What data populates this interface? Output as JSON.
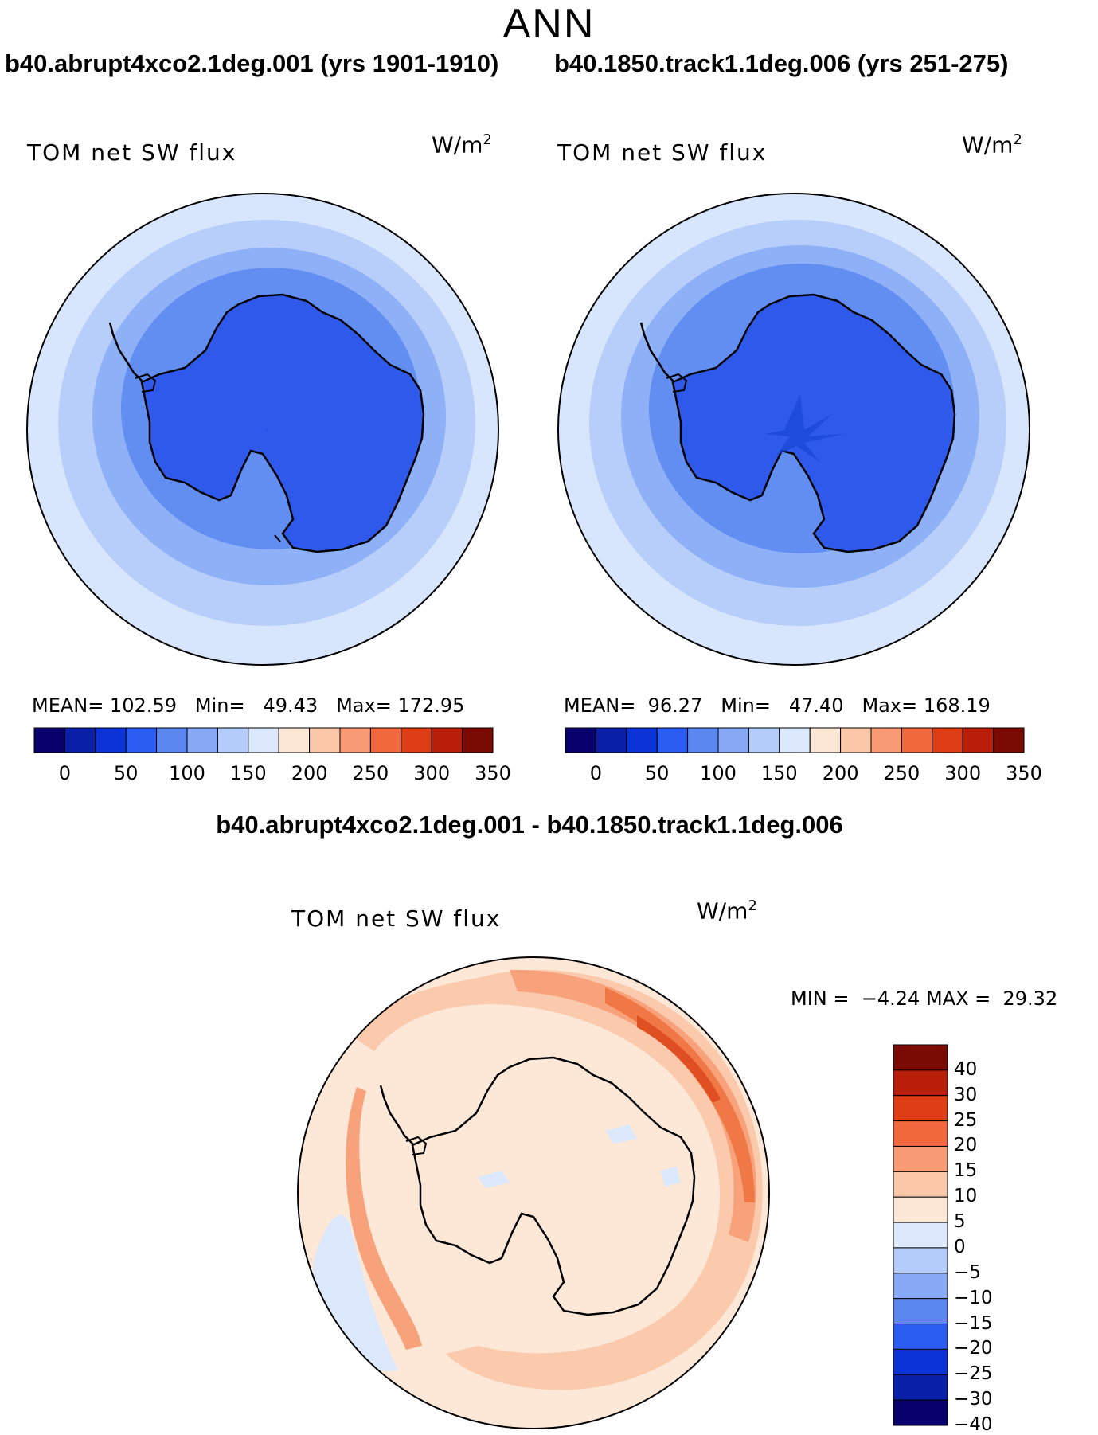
{
  "page": {
    "title": "ANN"
  },
  "colors": {
    "levels_abs": [
      "#08006b",
      "#0a1fa8",
      "#0b33d6",
      "#2b5df2",
      "#5b88f0",
      "#87a8f5",
      "#b4ccfa",
      "#dce8fc",
      "#fde8d8",
      "#fbc7a9",
      "#f89a73",
      "#f0683c",
      "#de3d15",
      "#b91e0a",
      "#7a0b04"
    ],
    "levels_diff": [
      "#08006b",
      "#0a1fa8",
      "#0b33d6",
      "#2b5df2",
      "#5b88f0",
      "#87a8f5",
      "#b4ccfa",
      "#dce8fc",
      "#fde8d8",
      "#fbc7a9",
      "#f89a73",
      "#f0683c",
      "#de3d15",
      "#b91e0a",
      "#7a0b04"
    ],
    "land_abs": "#2e59ea",
    "land_diff": "#fde8d8",
    "ring_abs": [
      "#d8e6fd",
      "#b7cdfa",
      "#8eb0f6",
      "#628ef2",
      "#3f6eee"
    ],
    "ring_diff": [
      "#fde8d8",
      "#fbc9ac",
      "#f8a27c",
      "#f07846",
      "#e04f21"
    ]
  },
  "panels": {
    "left": {
      "case_title": "b40.abrupt4xco2.1deg.001 (yrs 1901-1910)",
      "label": "TOM net SW flux",
      "units_base": "W/m",
      "units_exp": "2",
      "stats": {
        "mean_label": "MEAN=",
        "mean": "102.59",
        "min_label": "Min=",
        "min": "49.43",
        "max_label": "Max=",
        "max": "172.95"
      }
    },
    "right": {
      "case_title": "b40.1850.track1.1deg.006 (yrs 251-275)",
      "label": "TOM net SW flux",
      "units_base": "W/m",
      "units_exp": "2",
      "stats": {
        "mean_label": "MEAN=",
        "mean": "96.27",
        "min_label": "Min=",
        "min": "47.40",
        "max_label": "Max=",
        "max": "168.19"
      }
    },
    "diff": {
      "case_title": "b40.abrupt4xco2.1deg.001 - b40.1850.track1.1deg.006",
      "label": "TOM net SW flux",
      "units_base": "W/m",
      "units_exp": "2",
      "stats": {
        "min_label": "MIN =",
        "min": "−4.24",
        "max_label": "MAX =",
        "max": "29.32"
      }
    }
  },
  "colorbar_abs": {
    "ticks": [
      "0",
      "50",
      "100",
      "150",
      "200",
      "250",
      "300",
      "350"
    ]
  },
  "colorbar_diff": {
    "ticks": [
      "40",
      "30",
      "25",
      "20",
      "15",
      "10",
      "5",
      "0",
      "−5",
      "−10",
      "−15",
      "−20",
      "−25",
      "−30",
      "−40"
    ]
  }
}
